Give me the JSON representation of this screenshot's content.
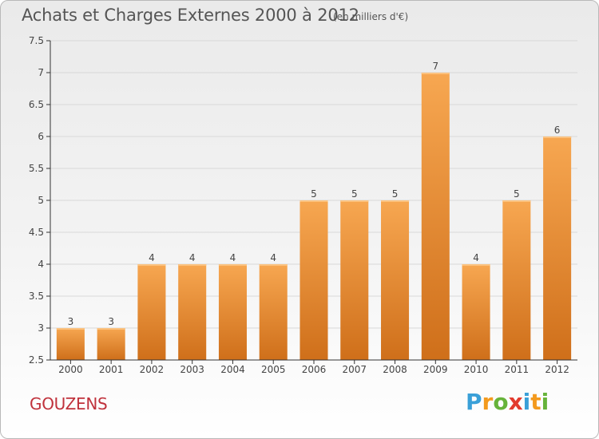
{
  "header": {
    "title": "Achats et Charges Externes 2000 à 2012",
    "subtitle": "(en milliers d'€)"
  },
  "footer": {
    "commune": "GOUZENS",
    "logo_letters": [
      "P",
      "r",
      "o",
      "x",
      "i",
      "t",
      "i"
    ],
    "logo_colors": [
      "#3aa0d8",
      "#f39a1e",
      "#67b33a",
      "#e23b2e",
      "#3aa0d8",
      "#f39a1e",
      "#67b33a"
    ]
  },
  "colors": {
    "bar_top": "#f7a751",
    "bar_bottom": "#cf6f1a",
    "grid": "#d8d8d8",
    "axis": "#333333"
  },
  "chart_data": {
    "type": "bar",
    "title": "Achats et Charges Externes 2000 à 2012",
    "subtitle": "(en milliers d'€)",
    "categories": [
      "2000",
      "2001",
      "2002",
      "2003",
      "2004",
      "2005",
      "2006",
      "2007",
      "2008",
      "2009",
      "2010",
      "2011",
      "2012"
    ],
    "values": [
      3,
      3,
      4,
      4,
      4,
      4,
      5,
      5,
      5,
      7,
      4,
      5,
      6
    ],
    "data_labels": [
      "3",
      "3",
      "4",
      "4",
      "4",
      "4",
      "5",
      "5",
      "5",
      "7",
      "4",
      "5",
      "6"
    ],
    "yticks": [
      "2.5",
      "3",
      "3.5",
      "4",
      "4.5",
      "5",
      "5.5",
      "6",
      "6.5",
      "7",
      "7.5"
    ],
    "ylim": [
      2.5,
      7.5
    ],
    "grid": true,
    "legend": false
  }
}
